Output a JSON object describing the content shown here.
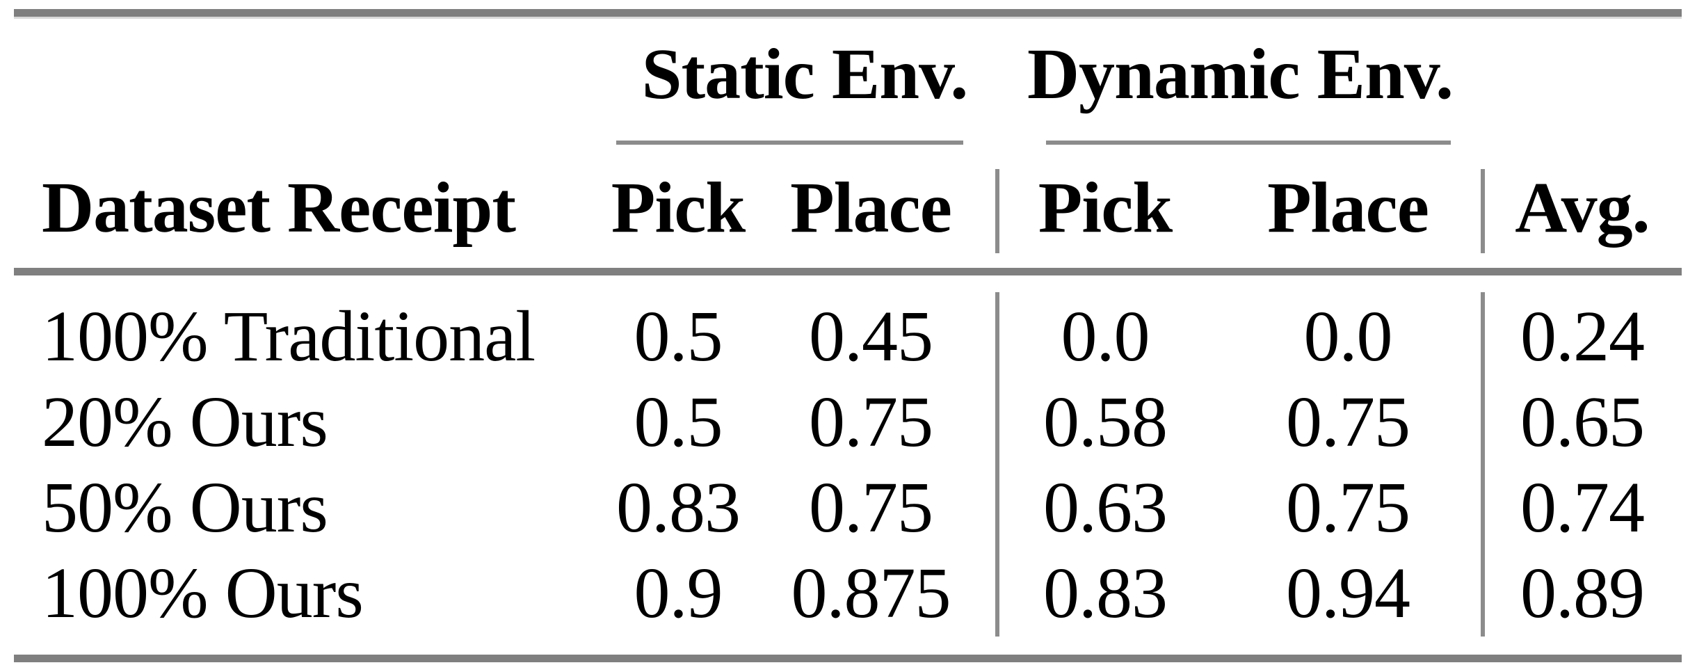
{
  "table": {
    "colors": {
      "rule": "#7f7f7f",
      "thin_rule": "#8c8c8c",
      "text": "#000000",
      "background": "#ffffff"
    },
    "col_groups": [
      {
        "label": "Static Env."
      },
      {
        "label": "Dynamic Env."
      }
    ],
    "columns": [
      "Dataset Receipt",
      "Pick",
      "Place",
      "Pick",
      "Place",
      "Avg."
    ],
    "rows": [
      {
        "label": "100% Traditional",
        "values": [
          "0.5",
          "0.45",
          "0.0",
          "0.0",
          "0.24"
        ]
      },
      {
        "label": "20% Ours",
        "values": [
          "0.5",
          "0.75",
          "0.58",
          "0.75",
          "0.65"
        ]
      },
      {
        "label": "50% Ours",
        "values": [
          "0.83",
          "0.75",
          "0.63",
          "0.75",
          "0.74"
        ]
      },
      {
        "label": "100% Ours",
        "values": [
          "0.9",
          "0.875",
          "0.83",
          "0.94",
          "0.89"
        ]
      }
    ]
  }
}
